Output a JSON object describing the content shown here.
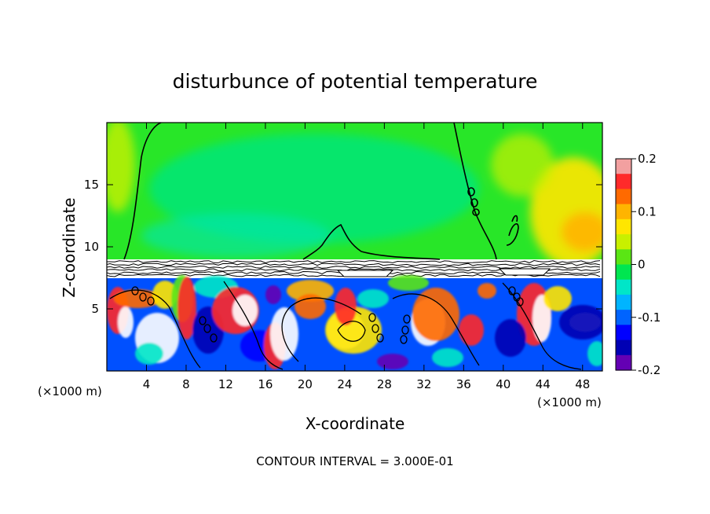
{
  "chart_data": {
    "type": "heatmap",
    "title": "disturbunce of potential temperature",
    "xlabel": "X-coordinate",
    "ylabel": "Z-coordinate",
    "x_unit": "(×1000 m)",
    "x_unit_right": "(×1000 m)",
    "xlim": [
      0,
      50
    ],
    "ylim": [
      0,
      20
    ],
    "x_ticks": [
      4,
      8,
      12,
      16,
      20,
      24,
      28,
      32,
      36,
      40,
      44,
      48
    ],
    "y_ticks": [
      5,
      10,
      15
    ],
    "colorbar": {
      "range": [
        -0.2,
        0.2
      ],
      "ticks": [
        "0.2",
        "0.1",
        "0",
        "-0.1",
        "-0.2"
      ],
      "colors": [
        "#f2a0a0",
        "#ff2a2a",
        "#ff6a00",
        "#ffb400",
        "#ffe600",
        "#c8f000",
        "#5ae614",
        "#00e650",
        "#00e6c8",
        "#00b4ff",
        "#0064ff",
        "#0000ff",
        "#0000b4",
        "#6400b4"
      ]
    },
    "footer": "CONTOUR INTERVAL = 3.000E-01"
  }
}
